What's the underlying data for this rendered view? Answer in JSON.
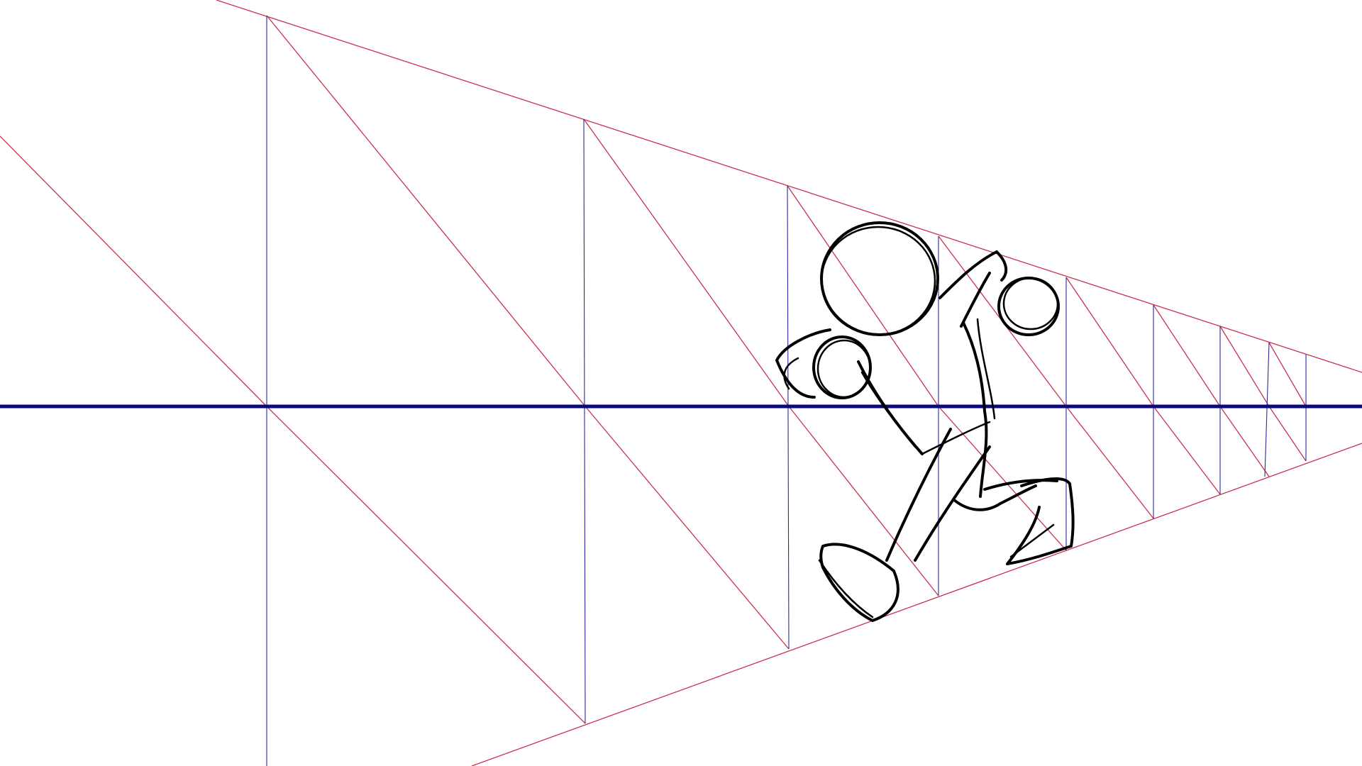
{
  "colors": {
    "background": "#ffffff",
    "perspective_line": "#c8324f",
    "vertical_line": "#2a2a9a",
    "horizon_line": "#0a0a7a",
    "sketch_stroke": "#000000"
  }
}
